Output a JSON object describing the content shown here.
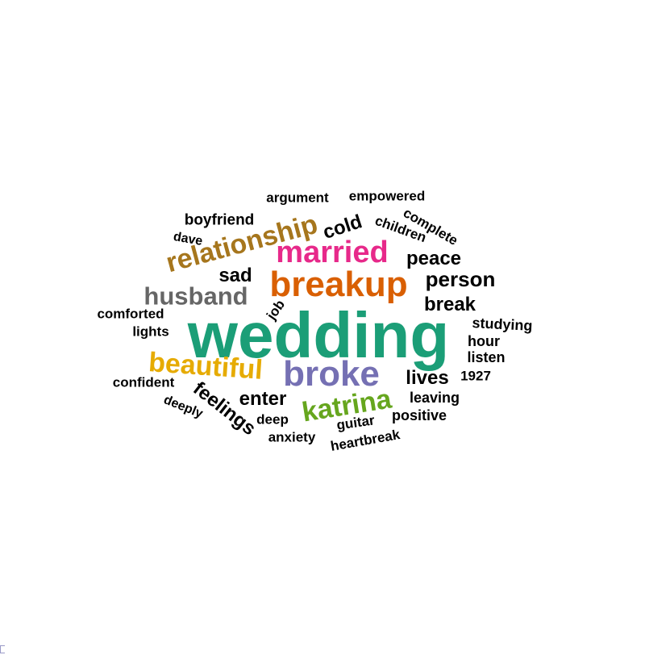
{
  "palette": {
    "teal": "#1b9e77",
    "orange": "#d95f02",
    "purple": "#7570b3",
    "magenta": "#e7298a",
    "green": "#66a61e",
    "gold": "#e6ab02",
    "brown": "#a6761d",
    "gray": "#666666",
    "black": "#000000"
  },
  "words": [
    {
      "text": "wedding",
      "color": "teal"
    },
    {
      "text": "breakup",
      "color": "orange"
    },
    {
      "text": "broke",
      "color": "purple"
    },
    {
      "text": "married",
      "color": "magenta"
    },
    {
      "text": "katrina",
      "color": "green"
    },
    {
      "text": "beautiful",
      "color": "gold"
    },
    {
      "text": "relationship",
      "color": "brown"
    },
    {
      "text": "husband",
      "color": "gray"
    },
    {
      "text": "person",
      "color": "black"
    },
    {
      "text": "peace",
      "color": "black"
    },
    {
      "text": "break",
      "color": "black"
    },
    {
      "text": "lives",
      "color": "black"
    },
    {
      "text": "enter",
      "color": "black"
    },
    {
      "text": "sad",
      "color": "black"
    },
    {
      "text": "cold",
      "color": "black"
    },
    {
      "text": "feelings",
      "color": "black"
    },
    {
      "text": "boyfriend",
      "color": "black"
    },
    {
      "text": "argument",
      "color": "black"
    },
    {
      "text": "empowered",
      "color": "black"
    },
    {
      "text": "children",
      "color": "black"
    },
    {
      "text": "complete",
      "color": "black"
    },
    {
      "text": "dave",
      "color": "black"
    },
    {
      "text": "comforted",
      "color": "black"
    },
    {
      "text": "lights",
      "color": "black"
    },
    {
      "text": "job",
      "color": "black"
    },
    {
      "text": "studying",
      "color": "black"
    },
    {
      "text": "hour",
      "color": "black"
    },
    {
      "text": "listen",
      "color": "black"
    },
    {
      "text": "1927",
      "color": "black"
    },
    {
      "text": "confident",
      "color": "black"
    },
    {
      "text": "deeply",
      "color": "black"
    },
    {
      "text": "deep",
      "color": "black"
    },
    {
      "text": "anxiety",
      "color": "black"
    },
    {
      "text": "guitar",
      "color": "black"
    },
    {
      "text": "positive",
      "color": "black"
    },
    {
      "text": "leaving",
      "color": "black"
    },
    {
      "text": "heartbreak",
      "color": "black"
    }
  ]
}
